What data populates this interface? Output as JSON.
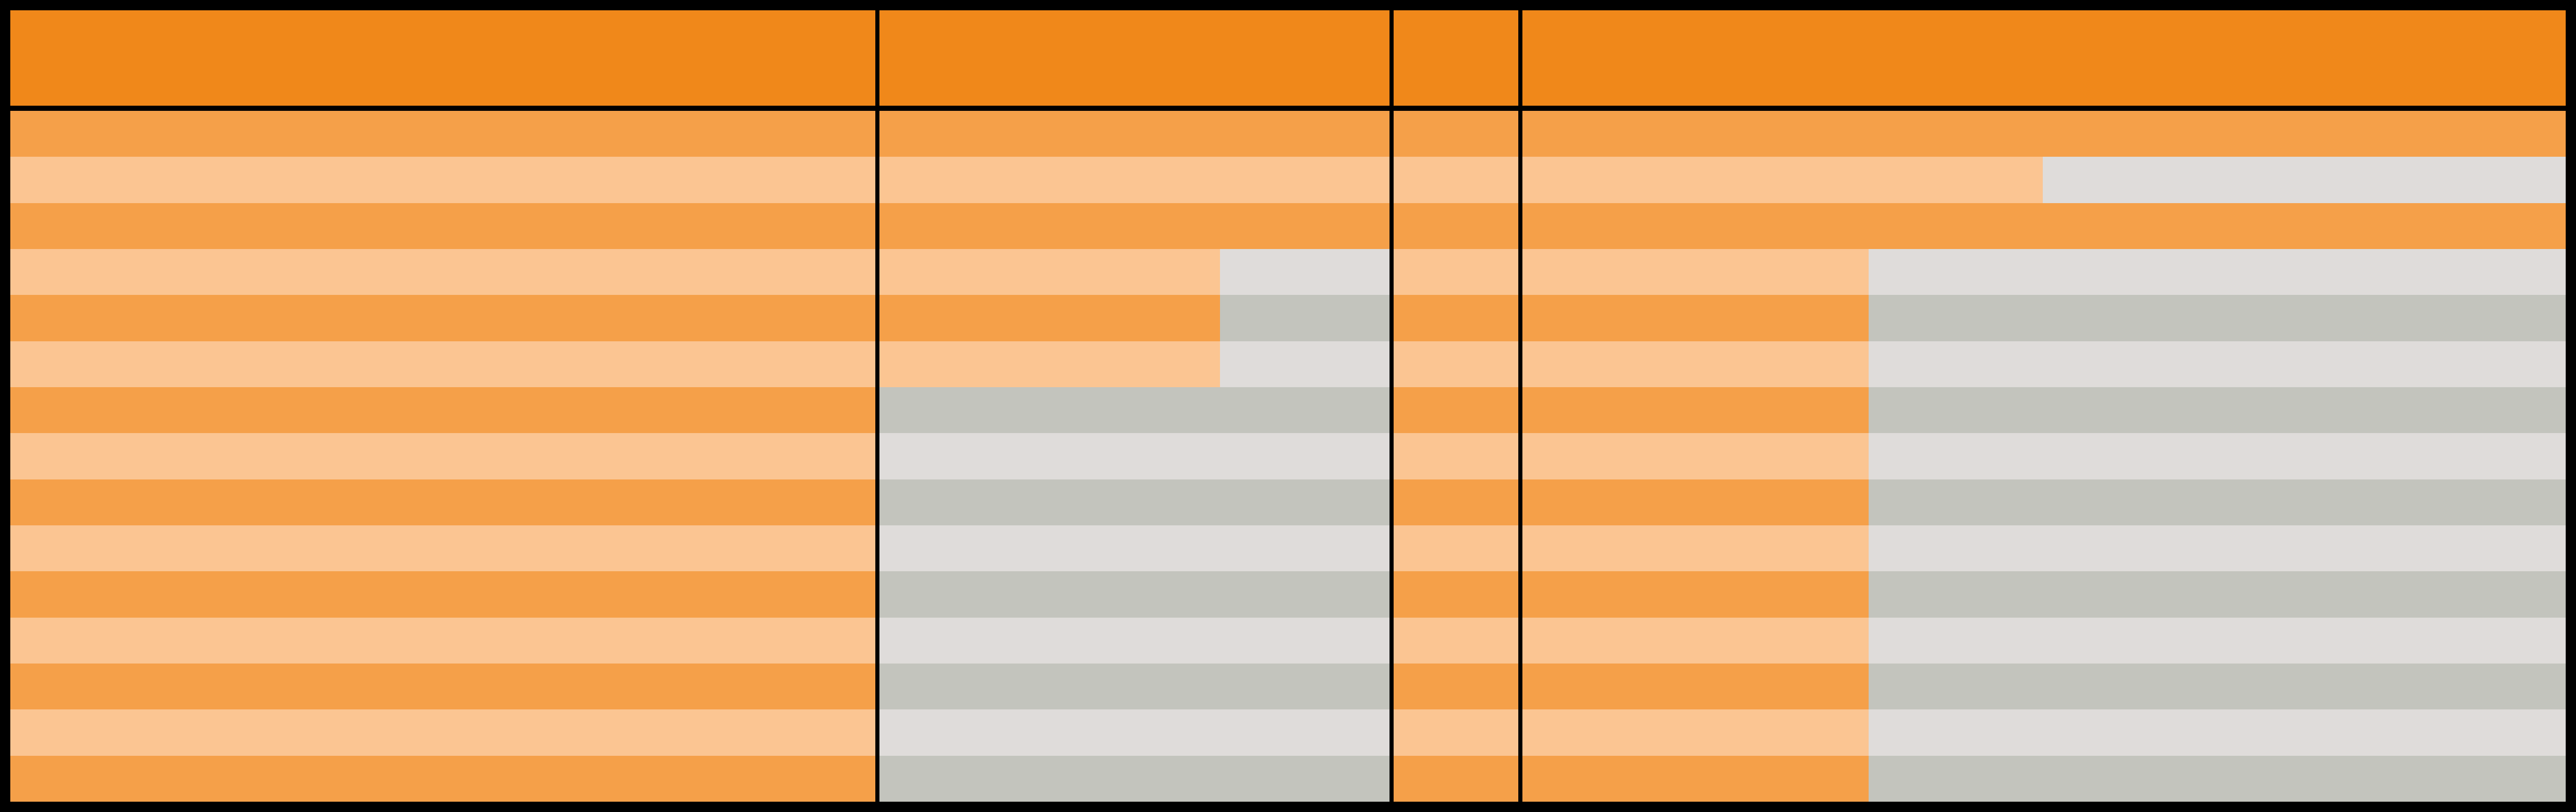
{
  "table": {
    "row_count": 15,
    "colors": {
      "header": "#F0881A",
      "filled_dark": "#F5A049",
      "filled_light": "#FBC592",
      "empty_dark": "#C3C4BD",
      "empty_light": "#DFDCDA",
      "border": "#000000"
    },
    "columns": [
      {
        "fills": [
          1,
          1,
          1,
          1,
          1,
          1,
          1,
          1,
          1,
          1,
          1,
          1,
          1,
          1,
          1
        ]
      },
      {
        "fills": [
          1,
          1,
          1,
          0.666,
          0.666,
          0.666,
          0,
          0,
          0,
          0,
          0,
          0,
          0,
          0,
          0
        ]
      },
      {
        "fills": [
          1,
          1,
          1,
          1,
          1,
          1,
          1,
          1,
          1,
          1,
          1,
          1,
          1,
          1,
          1
        ]
      },
      {
        "fills": [
          1,
          0.5,
          1,
          0.333,
          0.333,
          0.333,
          0.333,
          0.333,
          0.333,
          0.333,
          0.333,
          0.333,
          0.333,
          0.333,
          0.333
        ]
      }
    ]
  }
}
